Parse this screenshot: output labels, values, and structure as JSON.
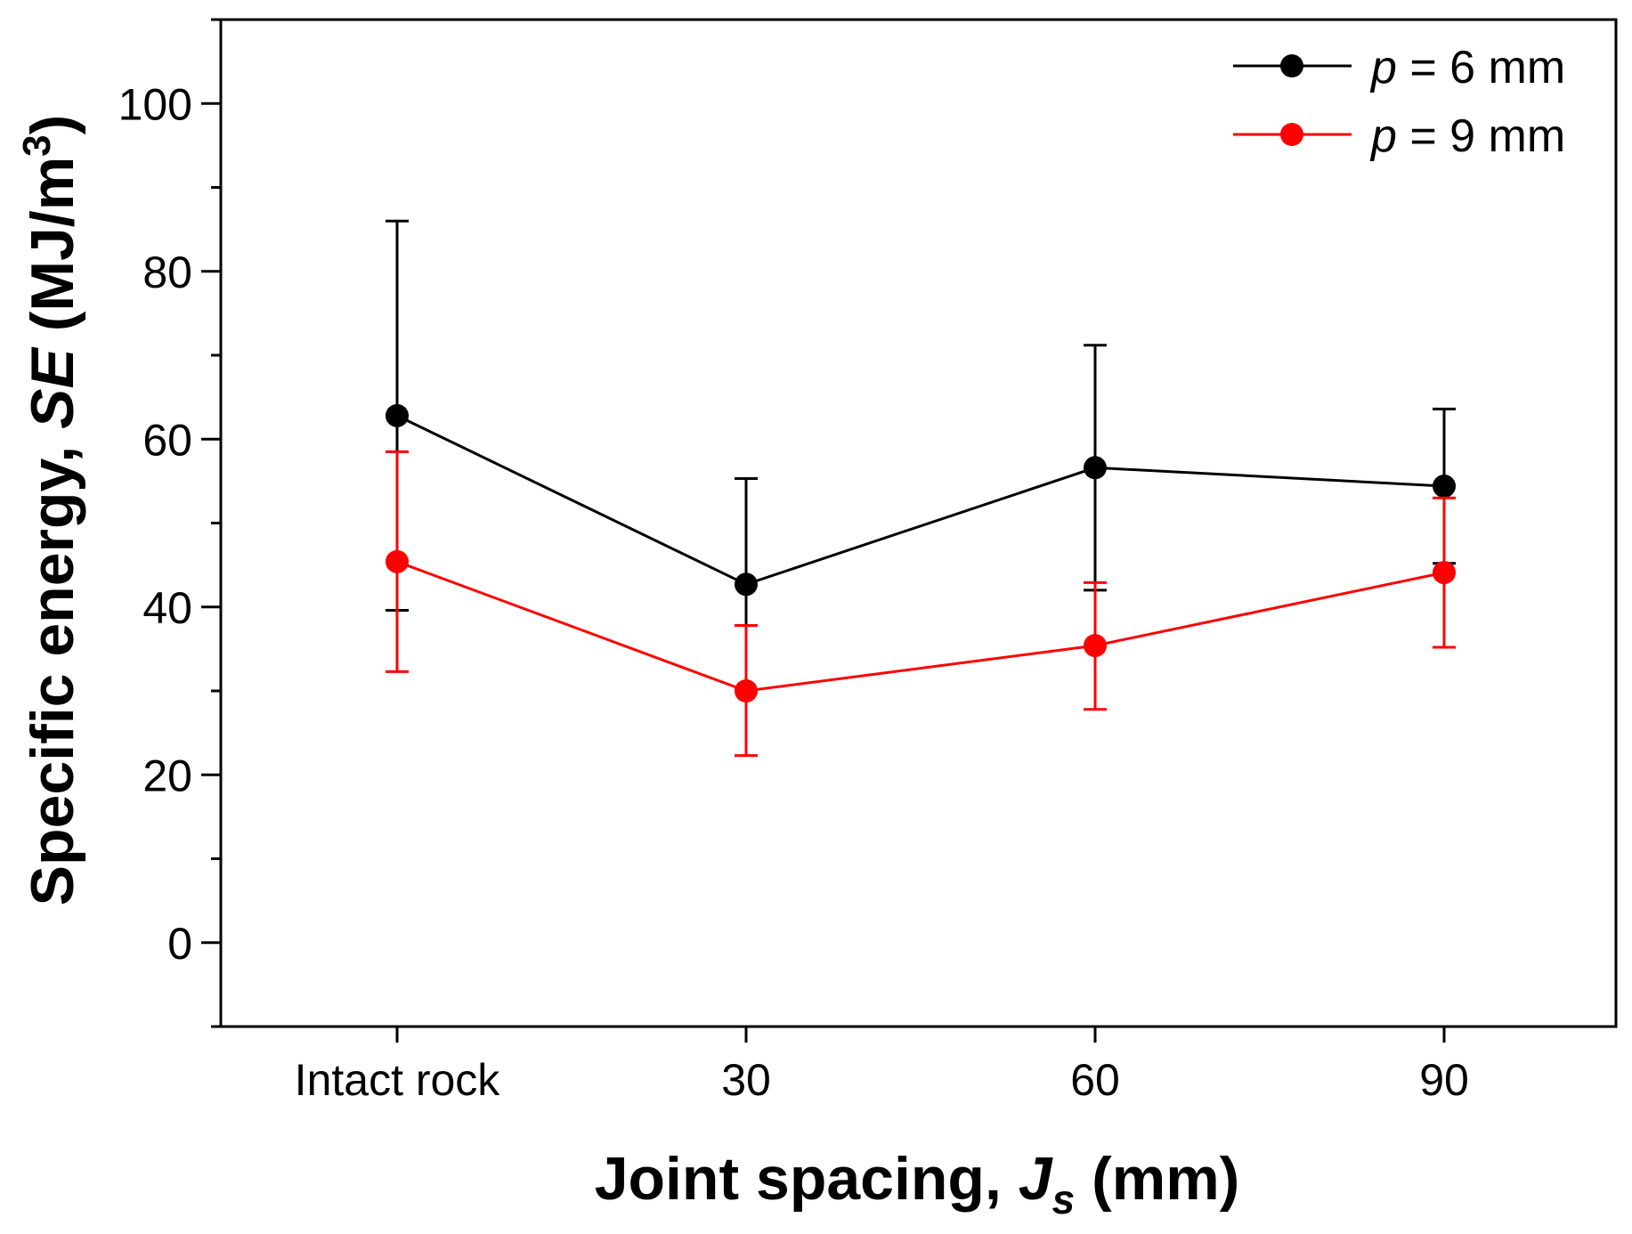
{
  "chart_data": {
    "type": "line",
    "categories": [
      "Intact rock",
      "30",
      "60",
      "90"
    ],
    "xlabel": {
      "main": "Joint spacing, ",
      "symbol": "J",
      "subscript": "s",
      "unit": " (mm)"
    },
    "ylabel": {
      "main": "Specific energy, ",
      "symbol": "SE",
      "unit_open": " (MJ/m",
      "unit_sup": "3",
      "unit_close": ")"
    },
    "ylim": [
      -10,
      110
    ],
    "yticks": [
      0,
      20,
      40,
      60,
      80,
      100
    ],
    "yminor_step": 10,
    "grid": false,
    "legend_position": "top-right",
    "series": [
      {
        "name": "p = 6 mm",
        "name_symbol": "p",
        "name_rest": " = 6 mm",
        "color": "#000000",
        "values": [
          62.8,
          42.7,
          56.6,
          54.4
        ],
        "err_upper": [
          86.0,
          55.3,
          71.2,
          63.6
        ],
        "err_lower": [
          39.6,
          30.1,
          42.0,
          45.2
        ]
      },
      {
        "name": "p = 9 mm",
        "name_symbol": "p",
        "name_rest": " = 9 mm",
        "color": "#ff0000",
        "values": [
          45.4,
          30.0,
          35.4,
          44.1
        ],
        "err_upper": [
          58.5,
          37.8,
          42.9,
          53.0
        ],
        "err_lower": [
          32.3,
          22.3,
          27.8,
          35.2
        ]
      }
    ]
  }
}
